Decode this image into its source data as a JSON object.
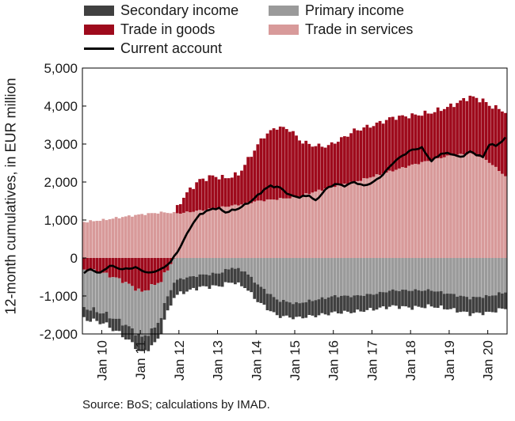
{
  "chart_data": {
    "type": "bar",
    "ylabel": "12-month cumulatives, in EUR million",
    "ylim": [
      -2000,
      5000
    ],
    "yticks": [
      -2000,
      -1000,
      0,
      1000,
      2000,
      3000,
      4000,
      5000
    ],
    "ytick_labels": [
      "-2,000",
      "-1,000",
      "0",
      "1,000",
      "2,000",
      "3,000",
      "4,000",
      "5,000"
    ],
    "xtick_labels": [
      "Jan 10",
      "Jan 11",
      "Jan 12",
      "Jan 13",
      "Jan 14",
      "Jan 15",
      "Jan 16",
      "Jan 17",
      "Jan 18",
      "Jan 19",
      "Jan 20"
    ],
    "legend_placement": "top",
    "source": "Source: BoS; calculations by IMAD.",
    "series": [
      {
        "name": "Secondary income",
        "color": "#404040",
        "anchors": [
          [
            0,
            -300
          ],
          [
            6,
            -260
          ],
          [
            12,
            -340
          ],
          [
            18,
            -400
          ],
          [
            24,
            -420
          ],
          [
            30,
            -380
          ],
          [
            36,
            -320
          ],
          [
            42,
            -340
          ],
          [
            48,
            -400
          ],
          [
            54,
            -440
          ],
          [
            60,
            -420
          ],
          [
            66,
            -380
          ],
          [
            72,
            -420
          ],
          [
            78,
            -440
          ],
          [
            84,
            -420
          ],
          [
            90,
            -400
          ],
          [
            96,
            -420
          ],
          [
            102,
            -460
          ],
          [
            108,
            -420
          ],
          [
            114,
            -400
          ],
          [
            120,
            -420
          ],
          [
            126,
            -440
          ],
          [
            131,
            -420
          ]
        ]
      },
      {
        "name": "Primary income",
        "color": "#9a9a9a",
        "anchors": [
          [
            0,
            -1000
          ],
          [
            6,
            -1050
          ],
          [
            12,
            -1100
          ],
          [
            16,
            -1150
          ],
          [
            18,
            -1200
          ],
          [
            22,
            -1150
          ],
          [
            26,
            -700
          ],
          [
            30,
            -550
          ],
          [
            36,
            -450
          ],
          [
            42,
            -400
          ],
          [
            46,
            -250
          ],
          [
            50,
            -350
          ],
          [
            54,
            -700
          ],
          [
            60,
            -1100
          ],
          [
            66,
            -1200
          ],
          [
            72,
            -1100
          ],
          [
            78,
            -1000
          ],
          [
            84,
            -1000
          ],
          [
            90,
            -950
          ],
          [
            96,
            -850
          ],
          [
            102,
            -850
          ],
          [
            108,
            -850
          ],
          [
            114,
            -950
          ],
          [
            120,
            -1050
          ],
          [
            126,
            -1000
          ],
          [
            131,
            -900
          ]
        ]
      },
      {
        "name": "Trade in goods",
        "color": "#9e0a1c",
        "anchors": [
          [
            0,
            -300
          ],
          [
            6,
            -400
          ],
          [
            12,
            -600
          ],
          [
            18,
            -900
          ],
          [
            22,
            -700
          ],
          [
            24,
            -600
          ],
          [
            27,
            -150
          ],
          [
            30,
            300
          ],
          [
            33,
            600
          ],
          [
            36,
            800
          ],
          [
            40,
            850
          ],
          [
            44,
            750
          ],
          [
            48,
            800
          ],
          [
            52,
            1250
          ],
          [
            56,
            1700
          ],
          [
            60,
            1900
          ],
          [
            64,
            1800
          ],
          [
            68,
            1400
          ],
          [
            72,
            1200
          ],
          [
            76,
            1100
          ],
          [
            80,
            1200
          ],
          [
            84,
            1350
          ],
          [
            90,
            1350
          ],
          [
            96,
            1400
          ],
          [
            102,
            1300
          ],
          [
            108,
            1250
          ],
          [
            114,
            1300
          ],
          [
            120,
            1500
          ],
          [
            126,
            1500
          ],
          [
            131,
            1700
          ]
        ]
      },
      {
        "name": "Trade in services",
        "color": "#d89a9a",
        "anchors": [
          [
            0,
            950
          ],
          [
            6,
            1000
          ],
          [
            12,
            1080
          ],
          [
            18,
            1150
          ],
          [
            24,
            1200
          ],
          [
            30,
            1180
          ],
          [
            36,
            1250
          ],
          [
            42,
            1330
          ],
          [
            48,
            1400
          ],
          [
            54,
            1500
          ],
          [
            60,
            1550
          ],
          [
            66,
            1600
          ],
          [
            72,
            1750
          ],
          [
            78,
            1900
          ],
          [
            84,
            2000
          ],
          [
            90,
            2150
          ],
          [
            96,
            2300
          ],
          [
            102,
            2450
          ],
          [
            108,
            2580
          ],
          [
            114,
            2700
          ],
          [
            120,
            2750
          ],
          [
            124,
            2650
          ],
          [
            127,
            2450
          ],
          [
            131,
            2150
          ]
        ]
      }
    ],
    "line_series": {
      "name": "Current account",
      "color": "#000000",
      "anchors": [
        [
          0,
          -380
        ],
        [
          2,
          -300
        ],
        [
          5,
          -400
        ],
        [
          8,
          -200
        ],
        [
          12,
          -300
        ],
        [
          16,
          -250
        ],
        [
          20,
          -400
        ],
        [
          24,
          -300
        ],
        [
          27,
          -100
        ],
        [
          30,
          300
        ],
        [
          33,
          800
        ],
        [
          36,
          1150
        ],
        [
          40,
          1300
        ],
        [
          42,
          1300
        ],
        [
          44,
          1200
        ],
        [
          48,
          1300
        ],
        [
          52,
          1500
        ],
        [
          56,
          1800
        ],
        [
          58,
          1900
        ],
        [
          61,
          1850
        ],
        [
          64,
          1650
        ],
        [
          67,
          1600
        ],
        [
          70,
          1650
        ],
        [
          72,
          1500
        ],
        [
          75,
          1800
        ],
        [
          78,
          1950
        ],
        [
          81,
          1900
        ],
        [
          84,
          2000
        ],
        [
          87,
          1900
        ],
        [
          90,
          2000
        ],
        [
          93,
          2200
        ],
        [
          96,
          2500
        ],
        [
          99,
          2700
        ],
        [
          102,
          2850
        ],
        [
          105,
          2900
        ],
        [
          108,
          2550
        ],
        [
          111,
          2750
        ],
        [
          114,
          2750
        ],
        [
          117,
          2650
        ],
        [
          120,
          2800
        ],
        [
          124,
          2650
        ],
        [
          126,
          3000
        ],
        [
          128,
          2950
        ],
        [
          131,
          3150
        ]
      ]
    }
  },
  "legend": [
    {
      "name": "Secondary income",
      "kind": "swatch",
      "color": "#404040"
    },
    {
      "name": "Primary income",
      "kind": "swatch",
      "color": "#9a9a9a"
    },
    {
      "name": "Trade in goods",
      "kind": "swatch",
      "color": "#9e0a1c"
    },
    {
      "name": "Trade in services",
      "kind": "swatch",
      "color": "#d89a9a"
    },
    {
      "name": "Current account",
      "kind": "line",
      "color": "#000000"
    }
  ]
}
